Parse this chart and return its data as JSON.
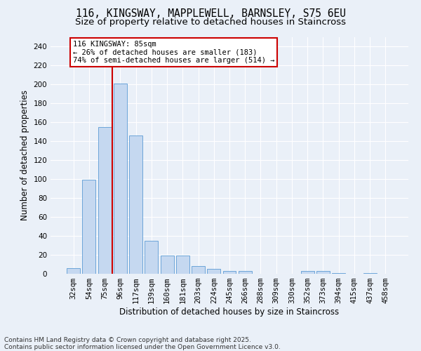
{
  "title_line1": "116, KINGSWAY, MAPPLEWELL, BARNSLEY, S75 6EU",
  "title_line2": "Size of property relative to detached houses in Staincross",
  "xlabel": "Distribution of detached houses by size in Staincross",
  "ylabel": "Number of detached properties",
  "bar_color": "#c5d8f0",
  "bar_edge_color": "#5b9bd5",
  "background_color": "#eaf0f8",
  "grid_color": "#ffffff",
  "categories": [
    "32sqm",
    "54sqm",
    "75sqm",
    "96sqm",
    "117sqm",
    "139sqm",
    "160sqm",
    "181sqm",
    "203sqm",
    "224sqm",
    "245sqm",
    "266sqm",
    "288sqm",
    "309sqm",
    "330sqm",
    "352sqm",
    "373sqm",
    "394sqm",
    "415sqm",
    "437sqm",
    "458sqm"
  ],
  "values": [
    6,
    99,
    155,
    201,
    146,
    35,
    19,
    19,
    8,
    5,
    3,
    3,
    0,
    0,
    0,
    3,
    3,
    1,
    0,
    1,
    0
  ],
  "ylim": [
    0,
    250
  ],
  "yticks": [
    0,
    20,
    40,
    60,
    80,
    100,
    120,
    140,
    160,
    180,
    200,
    220,
    240
  ],
  "vline_x_index": 3,
  "vline_color": "#cc0000",
  "marker_label": "116 KINGSWAY: 85sqm",
  "annotation_line1": "← 26% of detached houses are smaller (183)",
  "annotation_line2": "74% of semi-detached houses are larger (514) →",
  "annotation_box_facecolor": "#ffffff",
  "annotation_box_edgecolor": "#cc0000",
  "footnote_line1": "Contains HM Land Registry data © Crown copyright and database right 2025.",
  "footnote_line2": "Contains public sector information licensed under the Open Government Licence v3.0.",
  "title1_fontsize": 10.5,
  "title2_fontsize": 9.5,
  "axis_label_fontsize": 8.5,
  "tick_fontsize": 7.5,
  "annotation_fontsize": 7.5,
  "footnote_fontsize": 6.5
}
